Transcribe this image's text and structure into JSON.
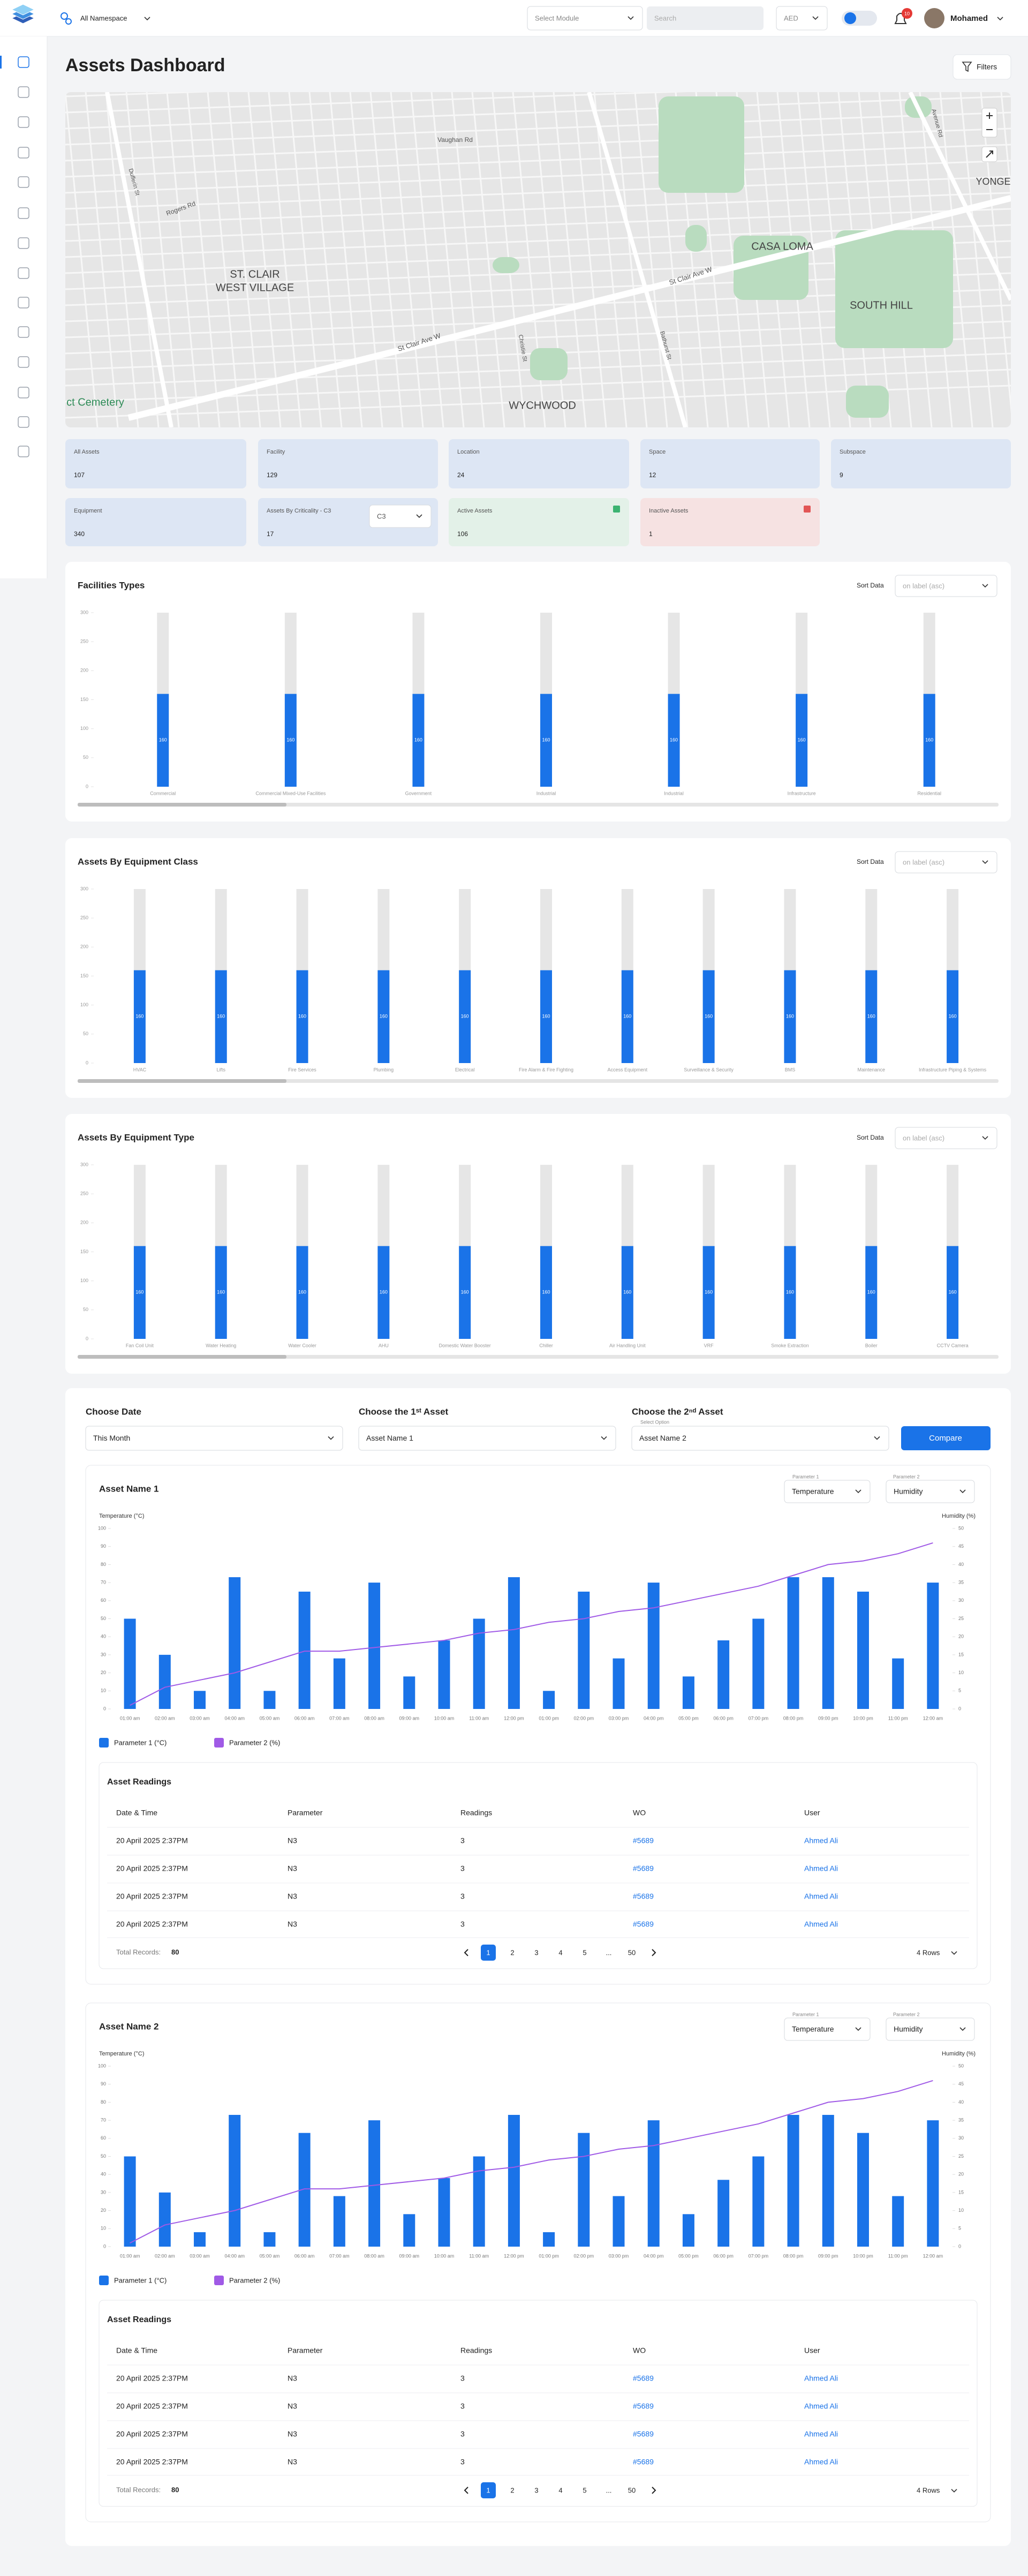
{
  "header": {
    "namespace": "All Namespace",
    "module_placeholder": "Select Module",
    "search_placeholder": "Search",
    "currency": "AED",
    "notifications": "10",
    "user": "Mohamed"
  },
  "page_title": "Assets Dashboard",
  "filters": "Filters",
  "map": {
    "labels": [
      "Vaughan Rd",
      "Rogers Rd",
      "Dufferin St",
      "ST. CLAIR",
      "WEST VILLAGE",
      "CASA LOMA",
      "SOUTH HILL",
      "WYCHWOOD",
      "St Clair Ave W",
      "St Clair Ave W",
      "Christie St",
      "Bathurst St",
      "Avenue Rd",
      "YONGE",
      "ct Cemetery"
    ]
  },
  "cards": [
    {
      "label": "All Assets",
      "value": 107
    },
    {
      "label": "Facility",
      "value": 129
    },
    {
      "label": "Location",
      "value": 24
    },
    {
      "label": "Space",
      "value": 12
    },
    {
      "label": "Subspace",
      "value": 9
    },
    {
      "label": "Equipment",
      "value": 340
    },
    {
      "label": "Assets By Criticality - C3",
      "value": 17,
      "select": "C3"
    },
    {
      "label": "Active Assets",
      "value": 106
    },
    {
      "label": "Inactive Assets",
      "value": 1
    }
  ],
  "chart_data": [
    {
      "type": "bar",
      "title": "Facilities Types",
      "sort_label": "Sort Data",
      "sort_placeholder": "on label (asc)",
      "categories": [
        "Commercial",
        "Commercial Mixed-Use Facilities",
        "Government",
        "Industrial",
        "Industrial",
        "Infrastructure",
        "Residential"
      ],
      "values": [
        160,
        160,
        160,
        160,
        160,
        160,
        160
      ],
      "color": "#1a73e8",
      "ylim": [
        0,
        300
      ],
      "yticks": [
        0,
        50,
        100,
        150,
        200,
        250,
        300
      ]
    },
    {
      "type": "bar",
      "title": "Assets By Equipment Class",
      "sort_label": "Sort Data",
      "sort_placeholder": "on label (asc)",
      "categories": [
        "HVAC",
        "Lifts",
        "Fire Services",
        "Plumbing",
        "Electrical",
        "Fire Alarm & Fire Fighting",
        "Access Equipment",
        "Surveillance & Security",
        "BMS",
        "Maintenance",
        "Infrastructure Piping & Systems"
      ],
      "values": [
        160,
        160,
        160,
        160,
        160,
        160,
        160,
        160,
        160,
        160,
        160
      ],
      "color": "#1a73e8",
      "ylim": [
        0,
        300
      ],
      "yticks": [
        0,
        50,
        100,
        150,
        200,
        250,
        300
      ]
    },
    {
      "type": "bar",
      "title": "Assets By Equipment Type",
      "sort_label": "Sort Data",
      "sort_placeholder": "on label (asc)",
      "categories": [
        "Fan Coil Unit",
        "Water Heating",
        "Water Cooler",
        "AHU",
        "Domestic Water Booster",
        "Chiller",
        "Air Handling Unit",
        "VRF",
        "Smoke Extraction",
        "Boiler",
        "CCTV Camera"
      ],
      "values": [
        160,
        160,
        160,
        160,
        160,
        160,
        160,
        160,
        160,
        160,
        160
      ],
      "color": "#1a73e8",
      "ylim": [
        0,
        300
      ],
      "yticks": [
        0,
        50,
        100,
        150,
        200,
        250,
        300
      ]
    },
    {
      "type": "combo",
      "title": "Asset Name 1",
      "parameter_1_label": "Parameter 1",
      "parameter_1": "Temperature",
      "parameter_2_label": "Parameter 2",
      "parameter_2": "Humidity",
      "ylabel": "Temperature (°C)",
      "y2label": "Humidity (%)",
      "categories": [
        "01:00 am",
        "02:00 am",
        "03:00 am",
        "04:00 am",
        "05:00 am",
        "06:00 am",
        "07:00 am",
        "08:00 am",
        "09:00 am",
        "10:00 am",
        "11:00 am",
        "12:00 pm",
        "01:00 pm",
        "02:00 pm",
        "03:00 pm",
        "04:00 pm",
        "05:00 pm",
        "06:00 pm",
        "07:00 pm",
        "08:00 pm",
        "09:00 pm",
        "10:00 pm",
        "11:00 pm",
        "12:00 am"
      ],
      "series": [
        {
          "name": "Parameter 1 (°C)",
          "color": "#1a73e8",
          "values": [
            50,
            30,
            10,
            73,
            10,
            65,
            28,
            70,
            18,
            38,
            50,
            73,
            10,
            65,
            28,
            70,
            18,
            38,
            50,
            73,
            73,
            65,
            28,
            70
          ]
        },
        {
          "name": "Parameter 2 (%)",
          "color": "#a05ae6",
          "axis": "y2",
          "values": [
            1,
            6,
            8,
            10,
            13,
            16,
            16,
            17,
            18,
            19,
            21,
            22,
            24,
            25,
            27,
            28,
            30,
            32,
            34,
            37,
            40,
            41,
            43,
            46
          ]
        }
      ],
      "ylim": [
        0,
        100
      ],
      "yticks": [
        0,
        10,
        20,
        30,
        40,
        50,
        60,
        70,
        80,
        90,
        100
      ],
      "y2lim": [
        0,
        50
      ],
      "y2ticks": [
        0,
        5,
        10,
        15,
        20,
        25,
        30,
        35,
        40,
        45,
        50
      ]
    },
    {
      "type": "combo",
      "title": "Asset Name 2",
      "parameter_1_label": "Parameter 1",
      "parameter_1": "Temperature",
      "parameter_2_label": "Parameter 2",
      "parameter_2": "Humidity",
      "ylabel": "Temperature (°C)",
      "y2label": "Humidity (%)",
      "categories": [
        "01:00 am",
        "02:00 am",
        "03:00 am",
        "04:00 am",
        "05:00 am",
        "06:00 am",
        "07:00 am",
        "08:00 am",
        "09:00 am",
        "10:00 am",
        "11:00 am",
        "12:00 pm",
        "01:00 pm",
        "02:00 pm",
        "03:00 pm",
        "04:00 pm",
        "05:00 pm",
        "06:00 pm",
        "07:00 pm",
        "08:00 pm",
        "09:00 pm",
        "10:00 pm",
        "11:00 pm",
        "12:00 am"
      ],
      "series": [
        {
          "name": "Parameter 1 (°C)",
          "color": "#1a73e8",
          "values": [
            50,
            30,
            8,
            73,
            8,
            63,
            28,
            70,
            18,
            38,
            50,
            73,
            8,
            63,
            28,
            70,
            18,
            37,
            50,
            73,
            73,
            63,
            28,
            70
          ]
        },
        {
          "name": "Parameter 2 (%)",
          "color": "#a05ae6",
          "axis": "y2",
          "values": [
            1,
            6,
            8,
            10,
            13,
            16,
            16,
            17,
            18,
            19,
            21,
            22,
            24,
            25,
            27,
            28,
            30,
            32,
            34,
            37,
            40,
            41,
            43,
            46
          ]
        }
      ],
      "ylim": [
        0,
        100
      ],
      "yticks": [
        0,
        10,
        20,
        30,
        40,
        50,
        60,
        70,
        80,
        90,
        100
      ],
      "y2lim": [
        0,
        50
      ],
      "y2ticks": [
        0,
        5,
        10,
        15,
        20,
        25,
        30,
        35,
        40,
        45,
        50
      ]
    }
  ],
  "compare": {
    "date_label": "Choose Date",
    "date_value": "This Month",
    "asset_1_label": "Choose the 1ˢᵗ Asset",
    "asset_1_value": "Asset Name 1",
    "asset_2_label": "Choose the 2ⁿᵈ Asset",
    "asset_2_hint": "Select Option",
    "asset_2_value": "Asset Name 2",
    "button": "Compare"
  },
  "asset_tables": [
    {
      "title": "Asset Readings",
      "columns": [
        "Date & Time",
        "Parameter",
        "Readings",
        "WO",
        "User"
      ],
      "rows": [
        [
          "20 April 2025 2:37PM",
          "N3",
          "3",
          "#5689",
          "Ahmed Ali"
        ],
        [
          "20 April 2025 2:37PM",
          "N3",
          "3",
          "#5689",
          "Ahmed Ali"
        ],
        [
          "20 April 2025 2:37PM",
          "N3",
          "3",
          "#5689",
          "Ahmed Ali"
        ],
        [
          "20 April 2025 2:37PM",
          "N3",
          "3",
          "#5689",
          "Ahmed Ali"
        ]
      ],
      "total_label": "Total Records:",
      "total": 80,
      "pages": [
        "1",
        "2",
        "3",
        "4",
        "5",
        "...",
        "50"
      ],
      "rows_per_page": "4 Rows"
    },
    {
      "title": "Asset Readings",
      "columns": [
        "Date & Time",
        "Parameter",
        "Readings",
        "WO",
        "User"
      ],
      "rows": [
        [
          "20 April 2025 2:37PM",
          "N3",
          "3",
          "#5689",
          "Ahmed Ali"
        ],
        [
          "20 April 2025 2:37PM",
          "N3",
          "3",
          "#5689",
          "Ahmed Ali"
        ],
        [
          "20 April 2025 2:37PM",
          "N3",
          "3",
          "#5689",
          "Ahmed Ali"
        ],
        [
          "20 April 2025 2:37PM",
          "N3",
          "3",
          "#5689",
          "Ahmed Ali"
        ]
      ],
      "total_label": "Total Records:",
      "total": 80,
      "pages": [
        "1",
        "2",
        "3",
        "4",
        "5",
        "...",
        "50"
      ],
      "rows_per_page": "4 Rows"
    }
  ]
}
